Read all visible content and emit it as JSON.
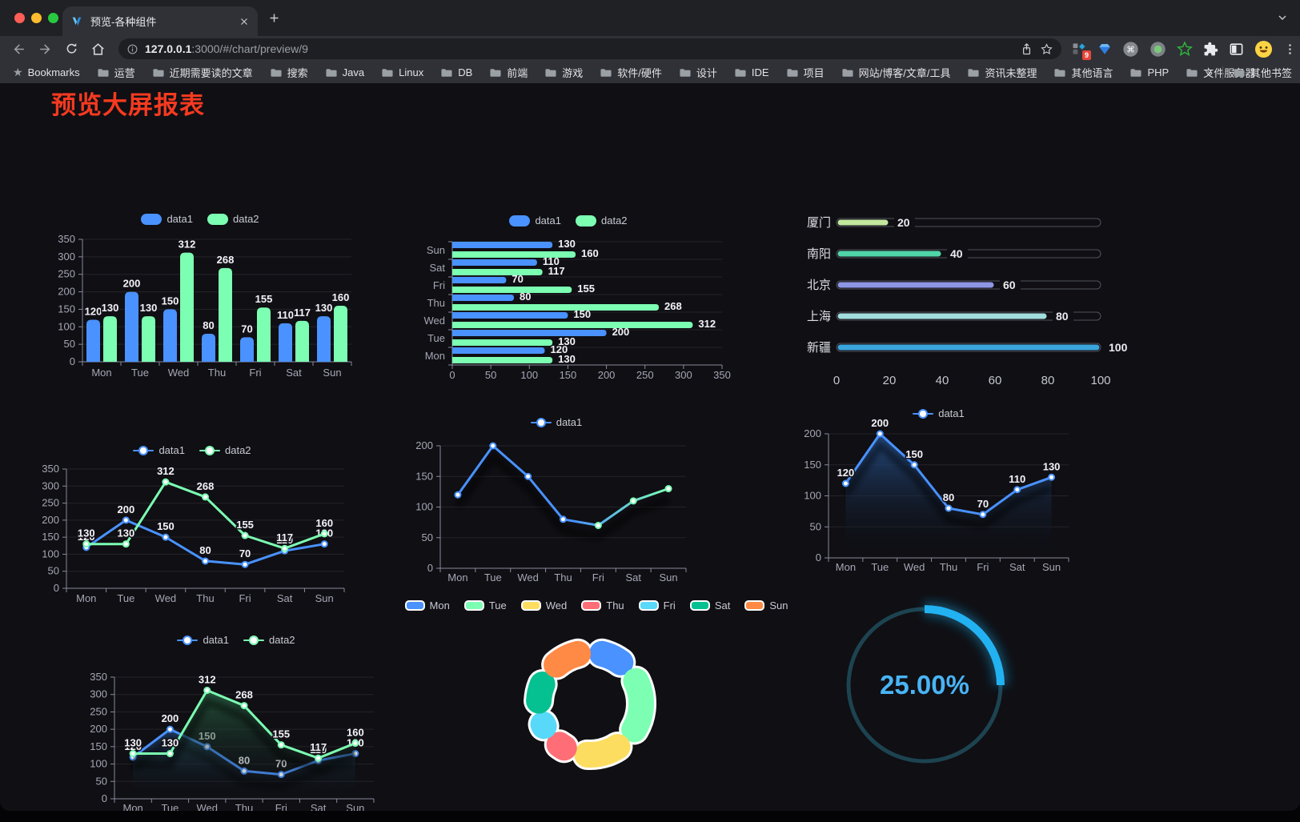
{
  "browser": {
    "tab_title": "预览-各种组件",
    "url_host": "127.0.0.1",
    "url_rest": ":3000/#/chart/preview/9",
    "extension_badge": "9",
    "toolbar_icons": [
      "back-arrow",
      "forward-arrow",
      "reload",
      "home",
      "info",
      "share",
      "star",
      "extension-badge",
      "gem",
      "command-circle",
      "record-circle",
      "green-star",
      "puzzle",
      "side-panel",
      "avatar-emoji",
      "menu-dots"
    ],
    "bookmarks_label": "Bookmarks",
    "bookmark_folders": [
      "运营",
      "近期需要读的文章",
      "搜索",
      "Java",
      "Linux",
      "DB",
      "前端",
      "游戏",
      "软件/硬件",
      "设计",
      "IDE",
      "项目",
      "网站/博客/文章/工具",
      "资讯未整理",
      "其他语言",
      "PHP",
      "文件服务器"
    ],
    "bookmarks_overflow": "»",
    "other_bookmarks_label": "其他书签",
    "traffic_colors": [
      "#ff5f57",
      "#febc2e",
      "#28c840"
    ]
  },
  "page": {
    "title": "预览大屏报表",
    "title_color": "#f53a20",
    "background": "#0f0f14"
  },
  "chart_data": [
    {
      "id": "bar-grouped",
      "type": "bar",
      "legend_position": "top",
      "categories": [
        "Mon",
        "Tue",
        "Wed",
        "Thu",
        "Fri",
        "Sat",
        "Sun"
      ],
      "series": [
        {
          "name": "data1",
          "color": "#4992ff",
          "values": [
            120,
            200,
            150,
            80,
            70,
            110,
            130
          ]
        },
        {
          "name": "data2",
          "color": "#7cffb2",
          "values": [
            130,
            130,
            312,
            268,
            155,
            117,
            160
          ]
        }
      ],
      "ylim": [
        0,
        350
      ],
      "yticks": [
        0,
        50,
        100,
        150,
        200,
        250,
        300,
        350
      ],
      "grid": true,
      "labels": true
    },
    {
      "id": "bar-horizontal",
      "type": "bar-horizontal",
      "legend_position": "top",
      "categories": [
        "Mon",
        "Tue",
        "Wed",
        "Thu",
        "Fri",
        "Sat",
        "Sun"
      ],
      "series": [
        {
          "name": "data1",
          "color": "#4992ff",
          "values": [
            120,
            200,
            150,
            80,
            70,
            110,
            130
          ]
        },
        {
          "name": "data2",
          "color": "#7cffb2",
          "values": [
            130,
            130,
            312,
            268,
            155,
            117,
            160
          ]
        }
      ],
      "xlim": [
        0,
        350
      ],
      "xticks": [
        0,
        50,
        100,
        150,
        200,
        250,
        300,
        350
      ],
      "grid": true,
      "labels": true
    },
    {
      "id": "progress-list",
      "type": "bar-horizontal",
      "items": [
        {
          "label": "厦门",
          "value": 20,
          "color": "#c3e79d"
        },
        {
          "label": "南阳",
          "value": 40,
          "color": "#50d5a9"
        },
        {
          "label": "北京",
          "value": 60,
          "color": "#8d96e5"
        },
        {
          "label": "上海",
          "value": 80,
          "color": "#a2dddd"
        },
        {
          "label": "新疆",
          "value": 100,
          "color": "#3aa5dc"
        }
      ],
      "xlim": [
        0,
        100
      ],
      "xticks": [
        0,
        20,
        40,
        60,
        80,
        100
      ]
    },
    {
      "id": "line-two",
      "type": "line",
      "legend_position": "top",
      "categories": [
        "Mon",
        "Tue",
        "Wed",
        "Thu",
        "Fri",
        "Sat",
        "Sun"
      ],
      "series": [
        {
          "name": "data1",
          "color": "#4992ff",
          "values": [
            120,
            200,
            150,
            80,
            70,
            110,
            130
          ]
        },
        {
          "name": "data2",
          "color": "#7cffb2",
          "values": [
            130,
            130,
            312,
            268,
            155,
            117,
            160
          ]
        }
      ],
      "ylim": [
        0,
        350
      ],
      "yticks": [
        0,
        50,
        100,
        150,
        200,
        250,
        300,
        350
      ],
      "labels": true
    },
    {
      "id": "line-gradient",
      "type": "line",
      "legend_position": "top",
      "categories": [
        "Mon",
        "Tue",
        "Wed",
        "Thu",
        "Fri",
        "Sat",
        "Sun"
      ],
      "series": [
        {
          "name": "data1",
          "gradient": [
            "#4992ff",
            "#7cffb2"
          ],
          "color": "#4992ff",
          "values": [
            120,
            200,
            150,
            80,
            70,
            110,
            130
          ]
        }
      ],
      "ylim": [
        0,
        200
      ],
      "yticks": [
        0,
        50,
        100,
        150,
        200
      ],
      "labels": false,
      "shadow": true
    },
    {
      "id": "area-single",
      "type": "area",
      "legend_position": "top",
      "categories": [
        "Mon",
        "Tue",
        "Wed",
        "Thu",
        "Fri",
        "Sat",
        "Sun"
      ],
      "series": [
        {
          "name": "data1",
          "color": "#4992ff",
          "area": [
            "rgba(38,80,138,0.95)",
            "rgba(13,15,20,0)"
          ],
          "values": [
            120,
            200,
            150,
            80,
            70,
            110,
            130
          ]
        }
      ],
      "ylim": [
        0,
        200
      ],
      "yticks": [
        0,
        50,
        100,
        150,
        200
      ],
      "labels": true,
      "shadow": true
    },
    {
      "id": "area-two",
      "type": "area",
      "legend_position": "top",
      "categories": [
        "Mon",
        "Tue",
        "Wed",
        "Thu",
        "Fri",
        "Sat",
        "Sun"
      ],
      "series": [
        {
          "name": "data1",
          "color": "#4992ff",
          "area": [
            "rgba(34,66,112,0.85)",
            "rgba(13,15,20,0)"
          ],
          "values": [
            120,
            200,
            150,
            80,
            70,
            110,
            130
          ]
        },
        {
          "name": "data2",
          "color": "#7cffb2",
          "area": [
            "rgba(40,96,66,0.85)",
            "rgba(13,15,20,0)"
          ],
          "values": [
            130,
            130,
            312,
            268,
            155,
            117,
            160
          ]
        }
      ],
      "ylim": [
        0,
        350
      ],
      "yticks": [
        0,
        50,
        100,
        150,
        200,
        250,
        300,
        350
      ],
      "labels": true,
      "shadow": true
    },
    {
      "id": "donut",
      "type": "pie",
      "legend_position": "top",
      "inner_radius_ratio": 0.58,
      "slices": [
        {
          "label": "Mon",
          "value": 120,
          "color": "#4992ff"
        },
        {
          "label": "Tue",
          "value": 200,
          "color": "#7cffb2"
        },
        {
          "label": "Wed",
          "value": 150,
          "color": "#fddd60"
        },
        {
          "label": "Thu",
          "value": 80,
          "color": "#ff6e76"
        },
        {
          "label": "Fri",
          "value": 70,
          "color": "#58d9f9"
        },
        {
          "label": "Sat",
          "value": 110,
          "color": "#05c091"
        },
        {
          "label": "Sun",
          "value": 130,
          "color": "#ff8a45"
        }
      ]
    },
    {
      "id": "gauge",
      "type": "gauge",
      "value": 25,
      "display": "25.00%",
      "color": "#22b2f2",
      "track_color": "#1d4350",
      "text_color": "#49b4f5"
    }
  ]
}
